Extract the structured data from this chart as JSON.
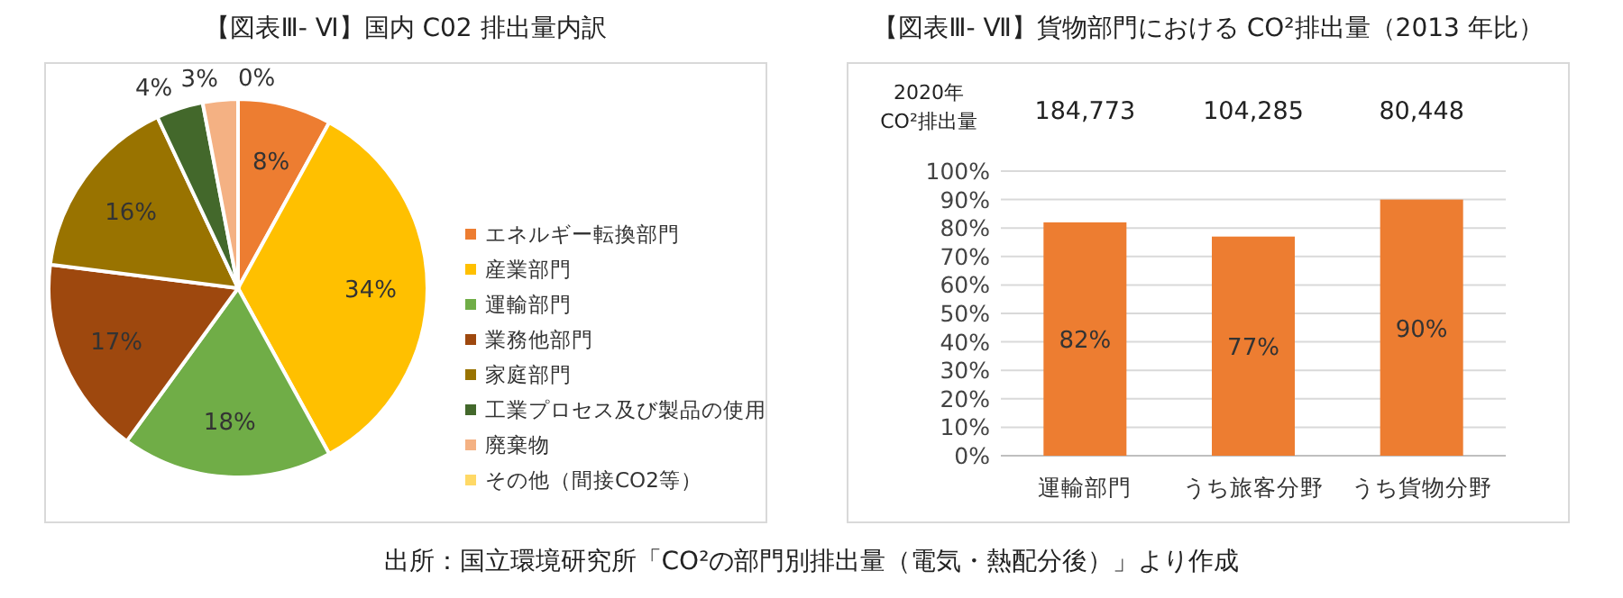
{
  "chart_data": [
    {
      "type": "pie",
      "title": "【図表Ⅲ- Ⅵ】国内 C02 排出量内訳",
      "categories": [
        "エネルギー転換部門",
        "産業部門",
        "運輸部門",
        "業務他部門",
        "家庭部門",
        "工業プロセス及び製品の使用",
        "廃棄物",
        "その他（間接CO2等）"
      ],
      "values": [
        8,
        34,
        18,
        17,
        16,
        4,
        3,
        0
      ],
      "colors": [
        "#ed7d31",
        "#ffc000",
        "#70ad47",
        "#9e480e",
        "#997300",
        "#43682b",
        "#f4b183",
        "#ffd966"
      ],
      "value_labels": [
        "8%",
        "34%",
        "18%",
        "17%",
        "16%",
        "4%",
        "3%",
        "0%"
      ],
      "legend": "right"
    },
    {
      "type": "bar",
      "title": "【図表Ⅲ- Ⅶ】貨物部門における CO²排出量（2013 年比）",
      "categories": [
        "運輸部門",
        "うち旅客分野",
        "うち貨物分野"
      ],
      "values": [
        82,
        77,
        90
      ],
      "color": "#ed7d31",
      "value_labels": [
        "82%",
        "77%",
        "90%"
      ],
      "ylim": [
        0,
        100
      ],
      "yticks": [
        {
          "value": 0,
          "label": "0%"
        },
        {
          "value": 10,
          "label": "10%"
        },
        {
          "value": 20,
          "label": "20%"
        },
        {
          "value": 30,
          "label": "30%"
        },
        {
          "value": 40,
          "label": "40%"
        },
        {
          "value": 50,
          "label": "50%"
        },
        {
          "value": 60,
          "label": "60%"
        },
        {
          "value": 70,
          "label": "70%"
        },
        {
          "value": 80,
          "label": "80%"
        },
        {
          "value": 90,
          "label": "90%"
        },
        {
          "value": 100,
          "label": "100%"
        }
      ],
      "grid": "y",
      "annotations": [
        "2020年 CO²排出量",
        "184,773",
        "104,285",
        "80,448",
        "出所：国立環境研究所「CO²の部門別排出量（電気・熱配分後）」より作成"
      ]
    }
  ]
}
